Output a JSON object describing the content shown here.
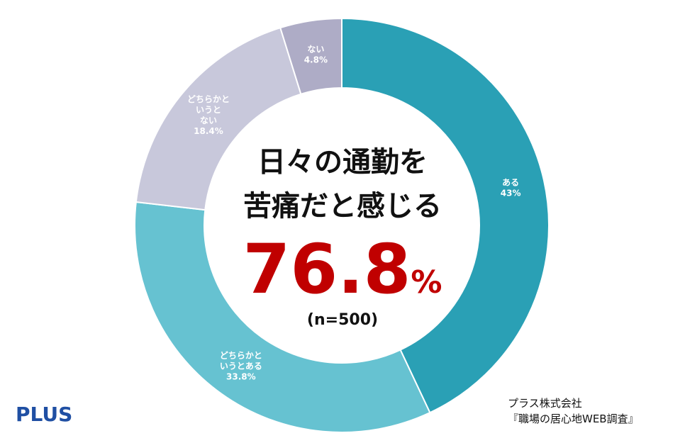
{
  "chart_data": {
    "type": "pie",
    "variant": "donut",
    "title_lines": [
      "日々の通勤を",
      "苦痛だと感じる"
    ],
    "highlight_value": "76.8",
    "highlight_unit": "%",
    "sample": "(n=500)",
    "series": [
      {
        "label_lines": [
          "ある"
        ],
        "value": 43.0,
        "value_label": "43%",
        "color": "#2aa0b5"
      },
      {
        "label_lines": [
          "どちらかと",
          "いうとある"
        ],
        "value": 33.8,
        "value_label": "33.8%",
        "color": "#66c2d1"
      },
      {
        "label_lines": [
          "どちらかと",
          "いうと",
          "ない"
        ],
        "value": 18.4,
        "value_label": "18.4%",
        "color": "#c8c8db"
      },
      {
        "label_lines": [
          "ない"
        ],
        "value": 4.8,
        "value_label": "4.8%",
        "color": "#aeacc6"
      }
    ]
  },
  "logo": {
    "text": "PLUS"
  },
  "source": {
    "line1": "プラス株式会社",
    "line2": "『職場の居心地WEB調査』"
  }
}
